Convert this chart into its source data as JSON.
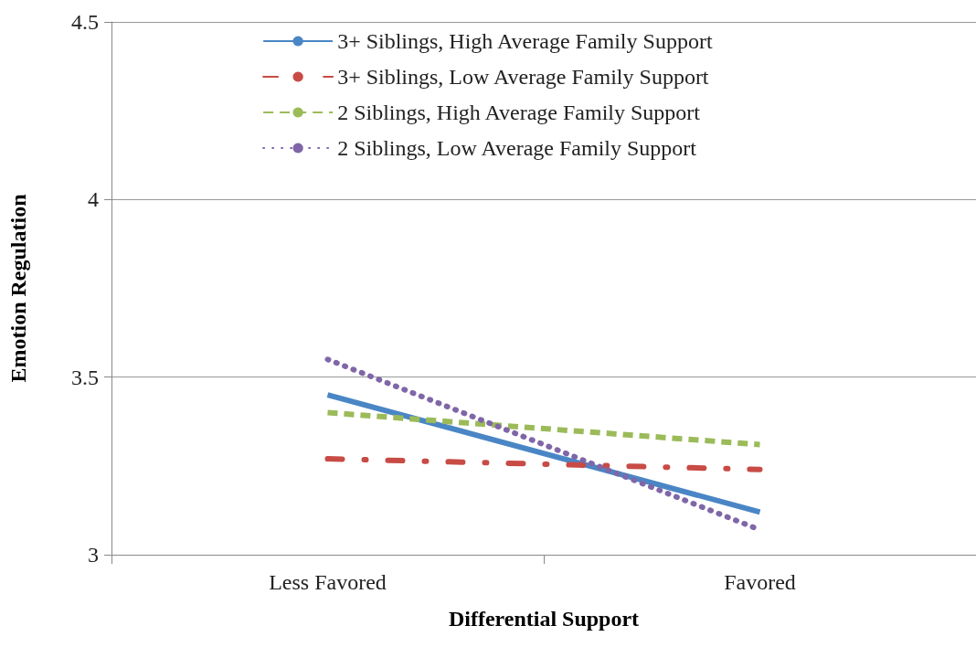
{
  "chart_data": {
    "type": "line",
    "xlabel": "Differential Support",
    "ylabel": "Emotion Regulation",
    "categories": [
      "Less Favored",
      "Favored"
    ],
    "series": [
      {
        "name": "3+ Siblings, High Average Family Support",
        "color": "#4a86c5",
        "values": [
          3.45,
          3.12
        ],
        "line_style": "solid"
      },
      {
        "name": "3+ Siblings, Low Average Family Support",
        "color": "#c84b45",
        "values": [
          3.27,
          3.24
        ],
        "line_style": "dashdot"
      },
      {
        "name": "2 Siblings, High Average Family Support",
        "color": "#9bbb59",
        "values": [
          3.4,
          3.31
        ],
        "line_style": "dashed"
      },
      {
        "name": "2 Siblings, Low Average Family Support",
        "color": "#7f66a8",
        "values": [
          3.55,
          3.07
        ],
        "line_style": "dotted"
      }
    ],
    "ylim": [
      3,
      4.5
    ],
    "yticks": [
      3,
      3.5,
      4,
      4.5
    ],
    "grid": "y",
    "legend": "top",
    "marker": "none"
  }
}
